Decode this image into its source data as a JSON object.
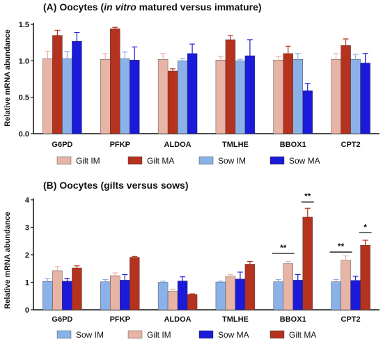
{
  "chart_data": [
    {
      "type": "bar",
      "title_prefix": "(A) Oocytes (",
      "title_italic": "in vitro",
      "title_suffix": " matured versus immature)",
      "ylabel": "Relative mRNA abundance",
      "ylim": [
        0,
        1.5
      ],
      "yticks": [
        "0.0",
        "0.5",
        "1.0",
        "1.5"
      ],
      "ytick_values": [
        0,
        0.5,
        1.0,
        1.5
      ],
      "categories": [
        "G6PD",
        "PFKP",
        "ALDOA",
        "TMLHE",
        "BBOX1",
        "CPT2"
      ],
      "series": [
        {
          "name": "Gilt IM",
          "color": "#e8b4a6",
          "values": [
            1.03,
            1.02,
            1.02,
            1.01,
            1.01,
            1.02
          ],
          "errors": [
            0.1,
            0.08,
            0.08,
            0.05,
            0.05,
            0.08
          ]
        },
        {
          "name": "Gilt MA",
          "color": "#b5321e",
          "values": [
            1.35,
            1.44,
            0.86,
            1.29,
            1.1,
            1.21
          ],
          "errors": [
            0.07,
            0.02,
            0.03,
            0.06,
            0.1,
            0.09
          ]
        },
        {
          "name": "Sow IM",
          "color": "#8ab2e8",
          "values": [
            1.03,
            1.03,
            1.0,
            1.0,
            1.02,
            1.02
          ],
          "errors": [
            0.1,
            0.09,
            0.03,
            0.02,
            0.08,
            0.07
          ]
        },
        {
          "name": "Sow MA",
          "color": "#1a1ad8",
          "values": [
            1.27,
            1.01,
            1.1,
            1.07,
            0.59,
            0.97
          ],
          "errors": [
            0.12,
            0.18,
            0.13,
            0.22,
            0.1,
            0.13
          ]
        }
      ],
      "significance": []
    },
    {
      "type": "bar",
      "title_prefix": "(B) Oocytes (gilts versus sows)",
      "title_italic": "",
      "title_suffix": "",
      "ylabel": "Relative mRNA abundance",
      "ylim": [
        0,
        4
      ],
      "yticks": [
        "0",
        "1",
        "2",
        "3",
        "4"
      ],
      "ytick_values": [
        0,
        1,
        2,
        3,
        4
      ],
      "categories": [
        "G6PD",
        "PFKP",
        "ALDOA",
        "TMLHE",
        "BBOX1",
        "CPT2"
      ],
      "series": [
        {
          "name": "Sow IM",
          "color": "#8ab2e8",
          "values": [
            1.03,
            1.02,
            1.0,
            1.01,
            1.02,
            1.02
          ],
          "errors": [
            0.1,
            0.08,
            0.04,
            0.03,
            0.08,
            0.08
          ]
        },
        {
          "name": "Gilt IM",
          "color": "#e8b4a6",
          "values": [
            1.42,
            1.24,
            0.67,
            1.22,
            1.68,
            1.8
          ],
          "errors": [
            0.15,
            0.1,
            0.08,
            0.06,
            0.08,
            0.16
          ]
        },
        {
          "name": "Sow MA",
          "color": "#1a1ad8",
          "values": [
            1.04,
            1.08,
            1.05,
            1.12,
            1.08,
            1.07
          ],
          "errors": [
            0.1,
            0.2,
            0.15,
            0.25,
            0.2,
            0.15
          ]
        },
        {
          "name": "Gilt MA",
          "color": "#b5321e",
          "values": [
            1.52,
            1.91,
            0.56,
            1.66,
            3.37,
            2.35
          ],
          "errors": [
            0.08,
            0.03,
            0.02,
            0.1,
            0.32,
            0.18
          ]
        }
      ],
      "significance": [
        {
          "category": 4,
          "from": 0,
          "to": 1,
          "y": 2.05,
          "label": "**"
        },
        {
          "category": 4,
          "from": 3,
          "to": 3,
          "y": 3.92,
          "label": "**"
        },
        {
          "category": 5,
          "from": 0,
          "to": 1,
          "y": 2.1,
          "label": "**"
        },
        {
          "category": 5,
          "from": 3,
          "to": 3,
          "y": 2.8,
          "label": "*"
        }
      ]
    }
  ]
}
